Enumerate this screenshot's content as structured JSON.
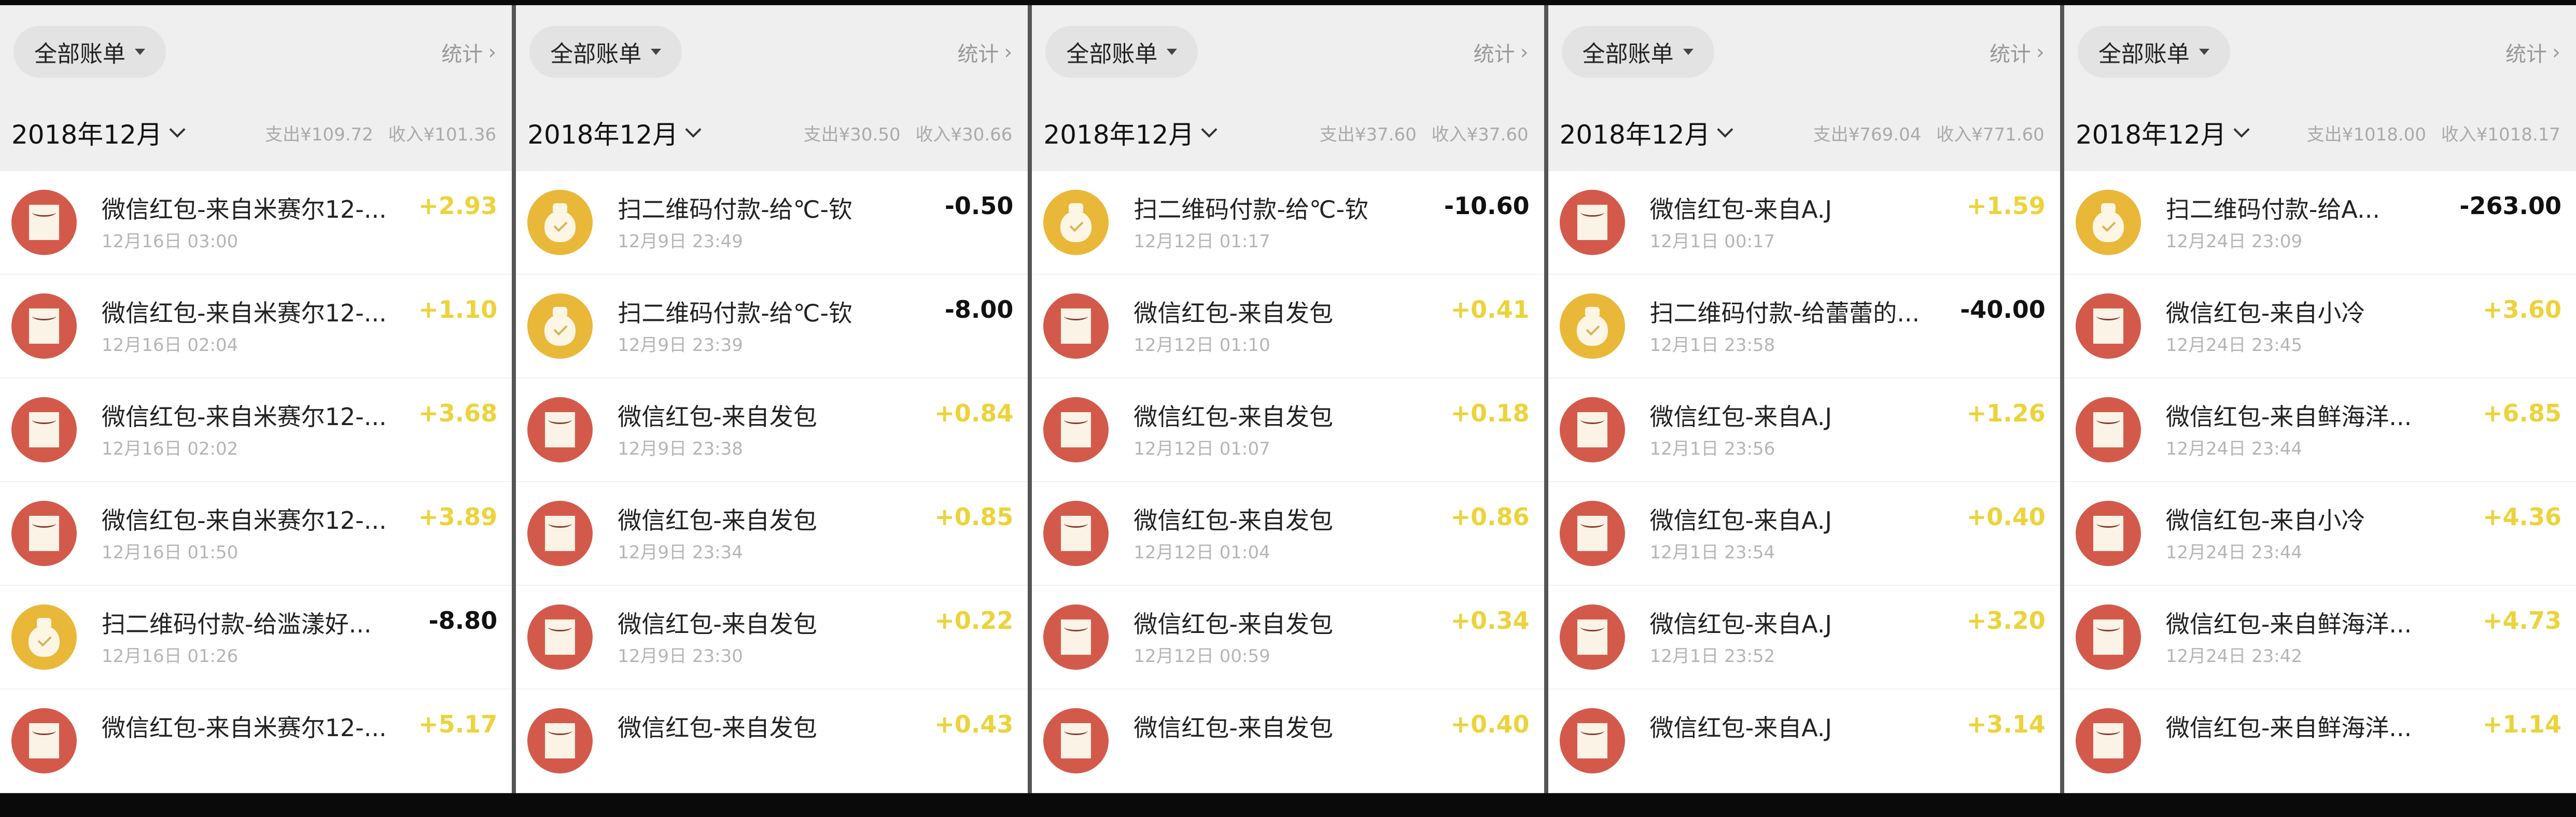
{
  "colors": {
    "income": "#ecd33a",
    "expense": "#111111",
    "red_packet_icon": "#d35a4b",
    "qr_pay_icon": "#e9b838"
  },
  "panels": [
    {
      "filter": "全部账单",
      "stats": "统计",
      "month": "2018年12月",
      "expense": "支出¥109.72",
      "income": "收入¥101.36",
      "rows": [
        {
          "icon": "red-packet",
          "title": "微信红包-来自米赛尔12-...",
          "time": "12月16日 03:00",
          "amount": "+2.93"
        },
        {
          "icon": "red-packet",
          "title": "微信红包-来自米赛尔12-...",
          "time": "12月16日 02:04",
          "amount": "+1.10"
        },
        {
          "icon": "red-packet",
          "title": "微信红包-来自米赛尔12-...",
          "time": "12月16日 02:02",
          "amount": "+3.68"
        },
        {
          "icon": "red-packet",
          "title": "微信红包-来自米赛尔12-...",
          "time": "12月16日 01:50",
          "amount": "+3.89"
        },
        {
          "icon": "qr-pay",
          "title": "扫二维码付款-给滥漾好...",
          "time": "12月16日 01:26",
          "amount": "-8.80"
        },
        {
          "icon": "red-packet",
          "title": "微信红包-来自米赛尔12-...",
          "time": "",
          "amount": "+5.17"
        }
      ]
    },
    {
      "filter": "全部账单",
      "stats": "统计",
      "month": "2018年12月",
      "expense": "支出¥30.50",
      "income": "收入¥30.66",
      "rows": [
        {
          "icon": "qr-pay",
          "title": "扫二维码付款-给℃-钦",
          "time": "12月9日 23:49",
          "amount": "-0.50"
        },
        {
          "icon": "qr-pay",
          "title": "扫二维码付款-给℃-钦",
          "time": "12月9日 23:39",
          "amount": "-8.00"
        },
        {
          "icon": "red-packet",
          "title": "微信红包-来自发包",
          "time": "12月9日 23:38",
          "amount": "+0.84"
        },
        {
          "icon": "red-packet",
          "title": "微信红包-来自发包",
          "time": "12月9日 23:34",
          "amount": "+0.85"
        },
        {
          "icon": "red-packet",
          "title": "微信红包-来自发包",
          "time": "12月9日 23:30",
          "amount": "+0.22"
        },
        {
          "icon": "red-packet",
          "title": "微信红包-来自发包",
          "time": "",
          "amount": "+0.43"
        }
      ]
    },
    {
      "filter": "全部账单",
      "stats": "统计",
      "month": "2018年12月",
      "expense": "支出¥37.60",
      "income": "收入¥37.60",
      "rows": [
        {
          "icon": "qr-pay",
          "title": "扫二维码付款-给℃-钦",
          "time": "12月12日 01:17",
          "amount": "-10.60"
        },
        {
          "icon": "red-packet",
          "title": "微信红包-来自发包",
          "time": "12月12日 01:10",
          "amount": "+0.41"
        },
        {
          "icon": "red-packet",
          "title": "微信红包-来自发包",
          "time": "12月12日 01:07",
          "amount": "+0.18"
        },
        {
          "icon": "red-packet",
          "title": "微信红包-来自发包",
          "time": "12月12日 01:04",
          "amount": "+0.86"
        },
        {
          "icon": "red-packet",
          "title": "微信红包-来自发包",
          "time": "12月12日 00:59",
          "amount": "+0.34"
        },
        {
          "icon": "red-packet",
          "title": "微信红包-来自发包",
          "time": "",
          "amount": "+0.40"
        }
      ]
    },
    {
      "filter": "全部账单",
      "stats": "统计",
      "month": "2018年12月",
      "expense": "支出¥769.04",
      "income": "收入¥771.60",
      "rows": [
        {
          "icon": "red-packet",
          "title": "微信红包-来自A.J",
          "time": "12月1日 00:17",
          "amount": "+1.59"
        },
        {
          "icon": "qr-pay",
          "title": "扫二维码付款-给蕾蕾的...",
          "time": "12月1日 23:58",
          "amount": "-40.00"
        },
        {
          "icon": "red-packet",
          "title": "微信红包-来自A.J",
          "time": "12月1日 23:56",
          "amount": "+1.26"
        },
        {
          "icon": "red-packet",
          "title": "微信红包-来自A.J",
          "time": "12月1日 23:54",
          "amount": "+0.40"
        },
        {
          "icon": "red-packet",
          "title": "微信红包-来自A.J",
          "time": "12月1日 23:52",
          "amount": "+3.20"
        },
        {
          "icon": "red-packet",
          "title": "微信红包-来自A.J",
          "time": "",
          "amount": "+3.14"
        }
      ]
    },
    {
      "filter": "全部账单",
      "stats": "统计",
      "month": "2018年12月",
      "expense": "支出¥1018.00",
      "income": "收入¥1018.17",
      "rows": [
        {
          "icon": "qr-pay",
          "title": "扫二维码付款-给A...",
          "time": "12月24日 23:09",
          "amount": "-263.00"
        },
        {
          "icon": "red-packet",
          "title": "微信红包-来自小冷",
          "time": "12月24日 23:45",
          "amount": "+3.60"
        },
        {
          "icon": "red-packet",
          "title": "微信红包-来自鲜海洋...",
          "time": "12月24日 23:44",
          "amount": "+6.85"
        },
        {
          "icon": "red-packet",
          "title": "微信红包-来自小冷",
          "time": "12月24日 23:44",
          "amount": "+4.36"
        },
        {
          "icon": "red-packet",
          "title": "微信红包-来自鲜海洋...",
          "time": "12月24日 23:42",
          "amount": "+4.73"
        },
        {
          "icon": "red-packet",
          "title": "微信红包-来自鲜海洋...",
          "time": "",
          "amount": "+1.14"
        }
      ]
    }
  ]
}
